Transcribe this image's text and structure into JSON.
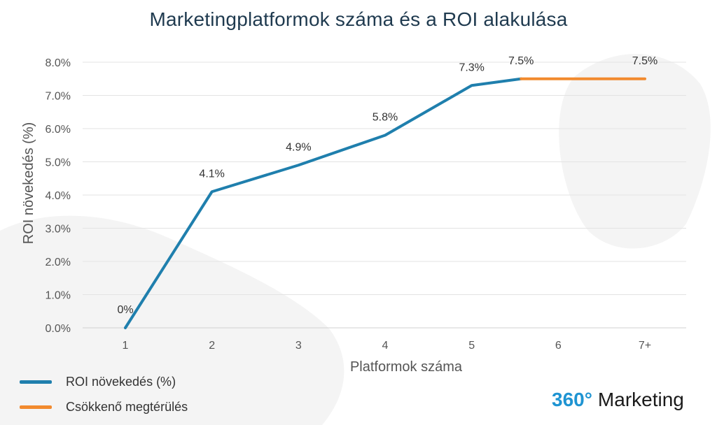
{
  "title": "Marketingplatformok száma és a ROI alakulása",
  "colors": {
    "roi": "#1f7fad",
    "decline": "#f28a2e",
    "title": "#1f3a4f",
    "brand_accent": "#1e94d2"
  },
  "chart_data": {
    "type": "line",
    "title": "Marketingplatformok száma és a ROI alakulása",
    "xlabel": "Platformok száma",
    "ylabel": "ROI növekedés (%)",
    "categories": [
      "1",
      "2",
      "3",
      "4",
      "5",
      "6",
      "7+"
    ],
    "yticks": [
      "0.0%",
      "1.0%",
      "2.0%",
      "3.0%",
      "4.0%",
      "5.0%",
      "6.0%",
      "7.0%",
      "8.0%"
    ],
    "ylim": [
      0,
      8
    ],
    "grid": true,
    "legend_position": "bottom-left",
    "series": [
      {
        "name": "ROI növekedés (%)",
        "color": "#1f7fad",
        "x": [
          1,
          2,
          3,
          4,
          5,
          5.57
        ],
        "y": [
          0,
          4.1,
          4.9,
          5.8,
          7.3,
          7.5
        ]
      },
      {
        "name": "Csökkenő megtérülés",
        "color": "#f28a2e",
        "x": [
          5.57,
          7
        ],
        "y": [
          7.5,
          7.5
        ]
      }
    ],
    "data_labels": [
      {
        "x": 1,
        "y": 0,
        "text": "0%"
      },
      {
        "x": 2,
        "y": 4.1,
        "text": "4.1%"
      },
      {
        "x": 3,
        "y": 4.9,
        "text": "4.9%"
      },
      {
        "x": 4,
        "y": 5.8,
        "text": "5.8%"
      },
      {
        "x": 5,
        "y": 7.3,
        "text": "7.3%"
      },
      {
        "x": 5.57,
        "y": 7.5,
        "text": "7.5%"
      },
      {
        "x": 7,
        "y": 7.5,
        "text": "7.5%"
      }
    ]
  },
  "legend": {
    "items": [
      {
        "label": "ROI növekedés (%)",
        "color": "#1f7fad"
      },
      {
        "label": "Csökkenő megtérülés",
        "color": "#f28a2e"
      }
    ]
  },
  "brand": {
    "number": "360°",
    "name": "Marketing"
  }
}
